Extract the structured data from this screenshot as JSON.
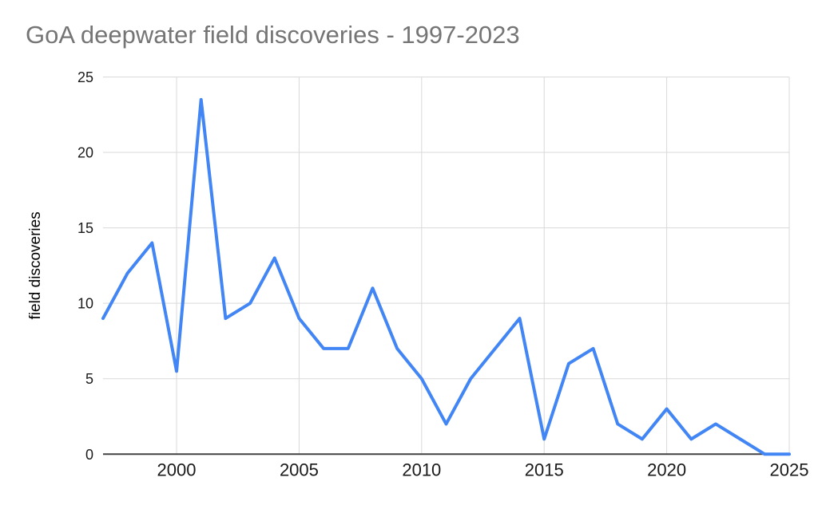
{
  "chart_data": {
    "type": "line",
    "title": "GoA deepwater field discoveries - 1997-2023",
    "ylabel": "field discoveries",
    "xlabel": "",
    "x": [
      1997,
      1998,
      1999,
      2000,
      2001,
      2002,
      2003,
      2004,
      2005,
      2006,
      2007,
      2008,
      2009,
      2010,
      2011,
      2012,
      2013,
      2014,
      2015,
      2016,
      2017,
      2018,
      2019,
      2020,
      2021,
      2022,
      2023,
      2024,
      2025
    ],
    "series": [
      {
        "name": "field discoveries",
        "values": [
          9,
          12,
          14,
          5.5,
          23.5,
          9,
          10,
          13,
          9,
          7,
          7,
          11,
          7,
          5,
          2,
          5,
          7,
          9,
          1,
          6,
          7,
          2,
          1,
          3,
          1,
          2,
          1,
          0,
          0
        ]
      }
    ],
    "xticks": [
      "2000",
      "2005",
      "2010",
      "2015",
      "2020",
      "2025"
    ],
    "yticks": [
      "0",
      "5",
      "10",
      "15",
      "20",
      "25"
    ],
    "xlim": [
      1997,
      2025
    ],
    "ylim": [
      0,
      25
    ],
    "grid": true,
    "legend_position": "none",
    "colors": {
      "line": "#4285f4",
      "grid": "#d9d9d9",
      "axis": "#424242",
      "title": "#757575",
      "tick_label": "#1a1a1a",
      "axis_title": "#000000",
      "background": "#ffffff"
    }
  }
}
